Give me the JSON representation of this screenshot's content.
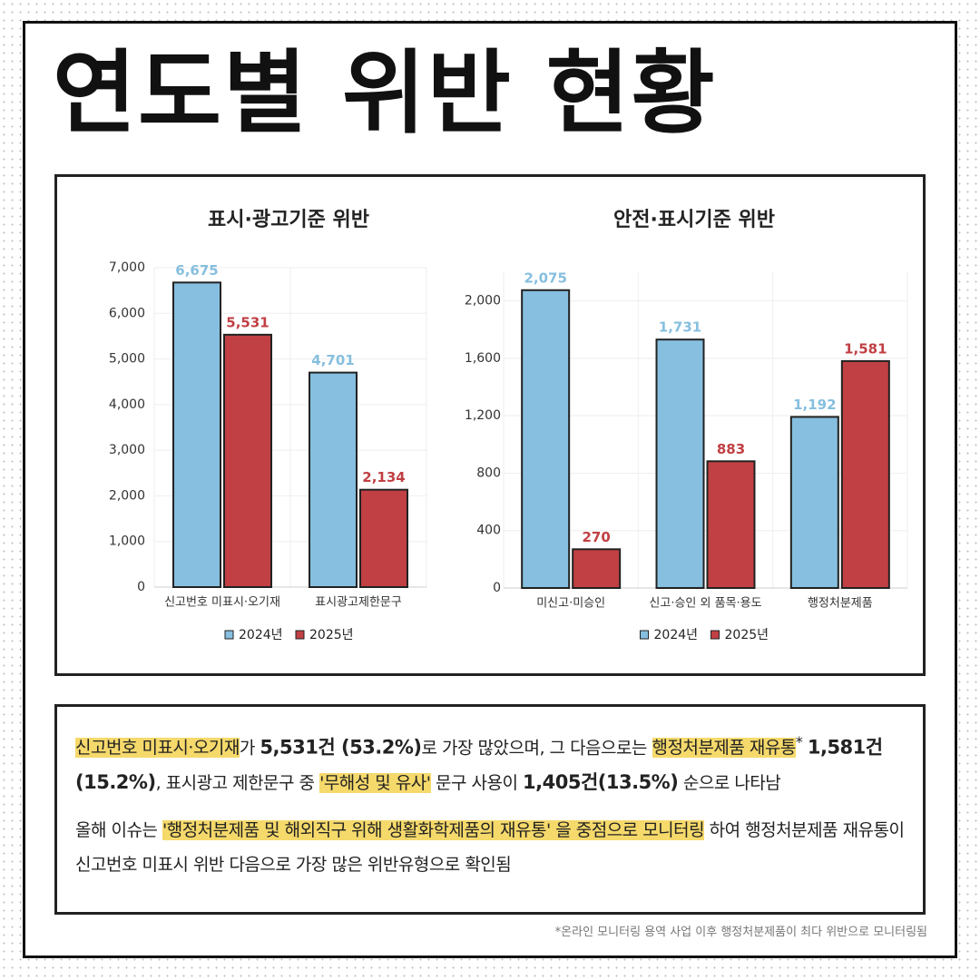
{
  "title": "연도별 위반 현황",
  "chart_data": [
    {
      "type": "bar",
      "title": "표시·광고기준 위반",
      "categories": [
        "신고번호 미표시·오기재",
        "표시광고제한문구"
      ],
      "series": [
        {
          "name": "2024년",
          "color": "#86bfdf",
          "values": [
            6675,
            4701
          ],
          "value_labels": [
            "6,675",
            "4,701"
          ]
        },
        {
          "name": "2025년",
          "color": "#c04043",
          "values": [
            5531,
            2134
          ],
          "value_labels": [
            "5,531",
            "2,134"
          ]
        }
      ],
      "ylim": [
        0,
        7000
      ],
      "yticks": [
        0,
        {
          "value": 1000,
          "label": "1,000"
        },
        {
          "value": 2000,
          "label": "2,000"
        },
        {
          "value": 3000,
          "label": "3,000"
        },
        {
          "value": 4000,
          "label": "4,000"
        },
        {
          "value": 5000,
          "label": "5,000"
        },
        {
          "value": 6000,
          "label": "6,000"
        },
        {
          "value": 7000,
          "label": "7,000"
        }
      ],
      "grid": true,
      "legend": "bottom"
    },
    {
      "type": "bar",
      "title": "안전·표시기준 위반",
      "categories": [
        "미신고·미승인",
        "신고·승인 외 품목·용도",
        "행정처분제품"
      ],
      "series": [
        {
          "name": "2024년",
          "color": "#86bfdf",
          "values": [
            2075,
            1731,
            1192
          ],
          "value_labels": [
            "2,075",
            "1,731",
            "1,192"
          ]
        },
        {
          "name": "2025년",
          "color": "#c04043",
          "values": [
            270,
            883,
            1581
          ],
          "value_labels": [
            "270",
            "883",
            "1,581"
          ]
        }
      ],
      "ylim": [
        0,
        2200
      ],
      "yticks": [
        0,
        400,
        800,
        {
          "value": 1200,
          "label": "1,200"
        },
        {
          "value": 1600,
          "label": "1,600"
        },
        {
          "value": 2000,
          "label": "2,000"
        }
      ],
      "grid": true,
      "legend": "bottom"
    }
  ],
  "summary": {
    "paragraphs": [
      [
        {
          "text": "신고번호 미표시·오기재",
          "highlight": true
        },
        {
          "text": "가 "
        },
        {
          "text": "5,531건 (53.2%)",
          "bold": true
        },
        {
          "text": "로 가장 많았으며, 그 다음으로는 "
        },
        {
          "text": "행정처분제품 재유통",
          "highlight": true
        },
        {
          "text": "*",
          "sup": true
        },
        {
          "text": " "
        },
        {
          "text": "1,581건(15.2%)",
          "bold": true
        },
        {
          "text": ", 표시광고 제한문구 중 "
        },
        {
          "text": "'무해성 및 유사'",
          "highlight": true
        },
        {
          "text": " 문구 사용이 "
        },
        {
          "text": "1,405건(13.5%)",
          "bold": true
        },
        {
          "text": " 순으로 나타남"
        }
      ],
      [
        {
          "text": "올해 이슈는 "
        },
        {
          "text": "'행정처분제품 및 해외직구 위해 생활화학제품의 재유통' 을 중점으로 모니터링",
          "highlight": true
        },
        {
          "text": " 하여 행정처분제품 재유통이 신고번호 미표시 위반 다음으로 가장 많은 위반유형으로 확인됨"
        }
      ]
    ]
  },
  "footnote": "*온라인 모니터링 용역 사업 이후 행정처분제품이 최다 위반으로 모니터링됨"
}
